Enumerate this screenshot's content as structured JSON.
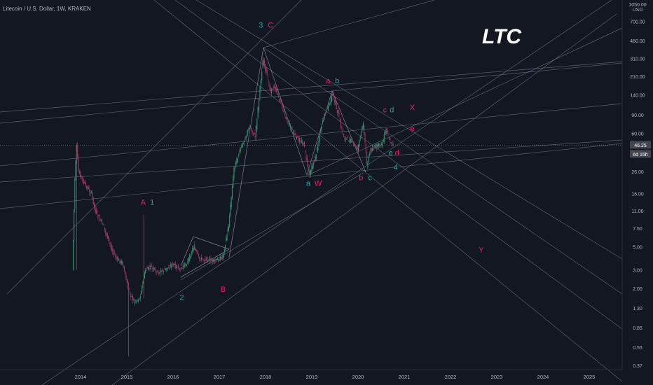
{
  "header": {
    "symbol_line": "Litecoin / U.S. Dollar, 1W, KRAKEN"
  },
  "overlay_title": "LTC",
  "colors": {
    "background": "#131722",
    "axis_text": "#b2b5be",
    "up_candle": "#3c8f74",
    "down_candle": "#a03b63",
    "green_label": "#26a69a",
    "pink_label": "#e91e63",
    "trendline": "#8e96a8"
  },
  "chart_data": {
    "type": "candlestick",
    "title": "Litecoin / U.S. Dollar, 1W, KRAKEN",
    "y_scale": "log",
    "ylabel": "USD",
    "ylim": [
      0.37,
      1050
    ],
    "y_ticks": [
      "1050.00",
      "700.00",
      "460.00",
      "310.00",
      "210.00",
      "140.00",
      "90.00",
      "60.00",
      "40.00",
      "26.00",
      "16.00",
      "11.00",
      "7.50",
      "5.00",
      "3.00",
      "2.00",
      "1.30",
      "0.85",
      "0.55",
      "0.37"
    ],
    "x_ticks": [
      "2014",
      "2015",
      "2016",
      "2017",
      "2018",
      "2019",
      "2020",
      "2021",
      "2022",
      "2023",
      "2024",
      "2025"
    ],
    "price_badge": {
      "value": "46.25",
      "countdown": "6d 15h"
    },
    "price_path": [
      [
        "2013-11-01",
        3
      ],
      [
        "2013-11-20",
        22
      ],
      [
        "2013-12-05",
        45
      ],
      [
        "2013-12-20",
        26
      ],
      [
        "2014-02-01",
        20
      ],
      [
        "2014-04-01",
        16
      ],
      [
        "2014-05-01",
        11
      ],
      [
        "2014-07-01",
        8
      ],
      [
        "2014-09-01",
        5
      ],
      [
        "2014-10-15",
        3.8
      ],
      [
        "2014-12-01",
        3.5
      ],
      [
        "2015-01-15",
        2
      ],
      [
        "2015-03-01",
        1.5
      ],
      [
        "2015-04-15",
        1.6
      ],
      [
        "2015-06-01",
        3
      ],
      [
        "2015-07-15",
        3.2
      ],
      [
        "2015-09-01",
        2.8
      ],
      [
        "2015-11-01",
        3
      ],
      [
        "2016-01-01",
        3.4
      ],
      [
        "2016-03-01",
        3
      ],
      [
        "2016-05-01",
        3.6
      ],
      [
        "2016-06-15",
        5
      ],
      [
        "2016-08-01",
        3.8
      ],
      [
        "2016-10-01",
        3.8
      ],
      [
        "2016-12-01",
        3.6
      ],
      [
        "2017-02-01",
        4
      ],
      [
        "2017-03-20",
        8
      ],
      [
        "2017-05-01",
        28
      ],
      [
        "2017-07-01",
        45
      ],
      [
        "2017-09-01",
        70
      ],
      [
        "2017-10-15",
        55
      ],
      [
        "2017-12-15",
        300
      ],
      [
        "2018-01-10",
        230
      ],
      [
        "2018-02-15",
        150
      ],
      [
        "2018-03-15",
        170
      ],
      [
        "2018-05-01",
        120
      ],
      [
        "2018-07-01",
        75
      ],
      [
        "2018-09-01",
        55
      ],
      [
        "2018-11-01",
        48
      ],
      [
        "2018-12-15",
        24
      ],
      [
        "2019-02-01",
        35
      ],
      [
        "2019-04-01",
        80
      ],
      [
        "2019-06-20",
        140
      ],
      [
        "2019-08-01",
        90
      ],
      [
        "2019-09-15",
        55
      ],
      [
        "2019-11-15",
        50
      ],
      [
        "2020-01-01",
        42
      ],
      [
        "2020-02-15",
        75
      ],
      [
        "2020-03-15",
        30
      ],
      [
        "2020-04-15",
        42
      ],
      [
        "2020-06-01",
        45
      ],
      [
        "2020-07-15",
        48
      ],
      [
        "2020-08-15",
        65
      ],
      [
        "2020-09-15",
        50
      ],
      [
        "2020-10-10",
        46.25
      ]
    ],
    "annotations": [
      {
        "text": "3",
        "color": "green",
        "date": "2017-11-25",
        "price": 610
      },
      {
        "text": "C",
        "color": "pink",
        "date": "2018-02-10",
        "price": 610
      },
      {
        "text": "a",
        "color": "pink",
        "date": "2019-05-10",
        "price": 180
      },
      {
        "text": "b",
        "color": "green",
        "date": "2019-07-20",
        "price": 180
      },
      {
        "text": "c",
        "color": "pink",
        "date": "2020-08-01",
        "price": 95
      },
      {
        "text": "d",
        "color": "green",
        "date": "2020-09-25",
        "price": 95
      },
      {
        "text": "X",
        "color": "pink",
        "date": "2021-03-05",
        "price": 100
      },
      {
        "text": "e",
        "color": "pink",
        "date": "2021-03-05",
        "price": 63
      },
      {
        "text": "e",
        "color": "green",
        "date": "2020-09-15",
        "price": 37
      },
      {
        "text": "d",
        "color": "pink",
        "date": "2020-11-05",
        "price": 37
      },
      {
        "text": "4",
        "color": "green",
        "date": "2020-10-25",
        "price": 27
      },
      {
        "text": "a",
        "color": "green",
        "date": "2018-12-05",
        "price": 19
      },
      {
        "text": "W",
        "color": "pink",
        "date": "2019-02-20",
        "price": 19
      },
      {
        "text": "b",
        "color": "pink",
        "date": "2020-01-25",
        "price": 21.5
      },
      {
        "text": "c",
        "color": "green",
        "date": "2020-04-05",
        "price": 21.5
      },
      {
        "text": "A",
        "color": "pink",
        "date": "2015-05-10",
        "price": 12.5
      },
      {
        "text": "1",
        "color": "green",
        "date": "2015-07-20",
        "price": 12.5
      },
      {
        "text": "Y",
        "color": "pink",
        "date": "2022-09-01",
        "price": 4.4
      },
      {
        "text": "B",
        "color": "pink",
        "date": "2017-02-01",
        "price": 1.85
      },
      {
        "text": "2",
        "color": "green",
        "date": "2016-03-10",
        "price": 1.55
      }
    ]
  }
}
